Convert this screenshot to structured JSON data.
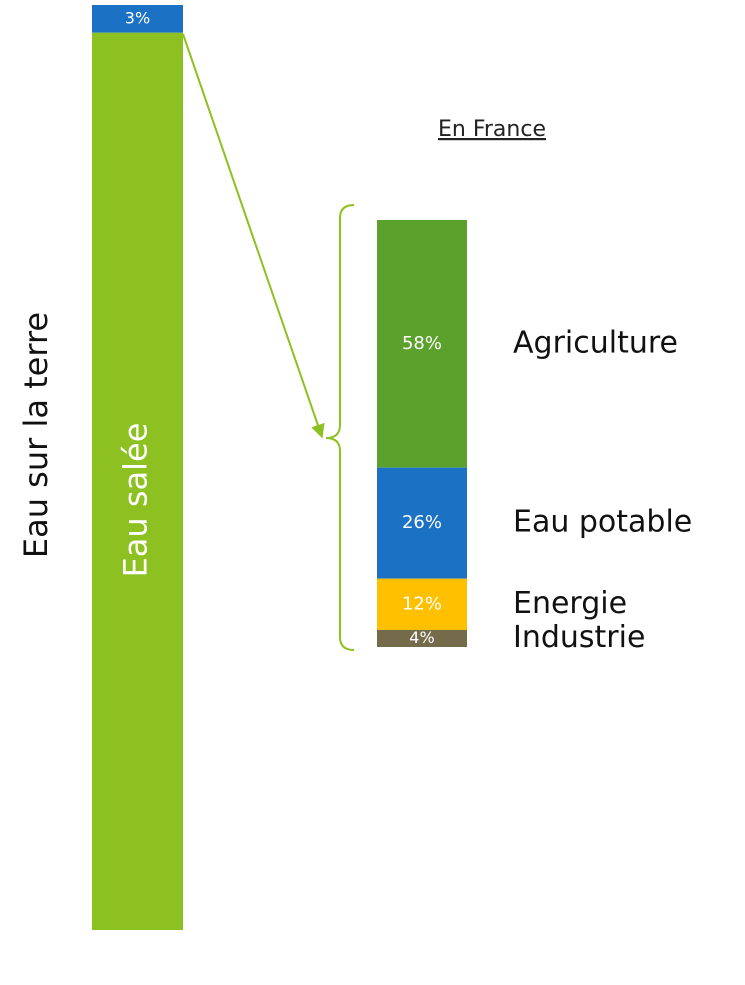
{
  "chart_data": [
    {
      "type": "stacked_bar",
      "ylabel": "Eau sur la terre",
      "series": [
        {
          "values": [
            3
          ],
          "value_labels": [
            "3%"
          ],
          "color": "#1b72c4"
        },
        {
          "name": "Eau salée",
          "values": [
            97
          ],
          "color": "#8dc122"
        }
      ]
    },
    {
      "type": "stacked_bar",
      "title": "En France",
      "legend": "right",
      "series": [
        {
          "name": "Agriculture",
          "values": [
            58
          ],
          "value_labels": [
            "58%"
          ],
          "color": "#5ba12b"
        },
        {
          "name": "Eau potable",
          "values": [
            26
          ],
          "value_labels": [
            "26%"
          ],
          "color": "#1b72c4"
        },
        {
          "name": "Energie",
          "values": [
            12
          ],
          "value_labels": [
            "12%"
          ],
          "color": "#ffc000"
        },
        {
          "name": "Industrie",
          "values": [
            4
          ],
          "value_labels": [
            "4%"
          ],
          "color": "#736b4a"
        }
      ]
    }
  ]
}
